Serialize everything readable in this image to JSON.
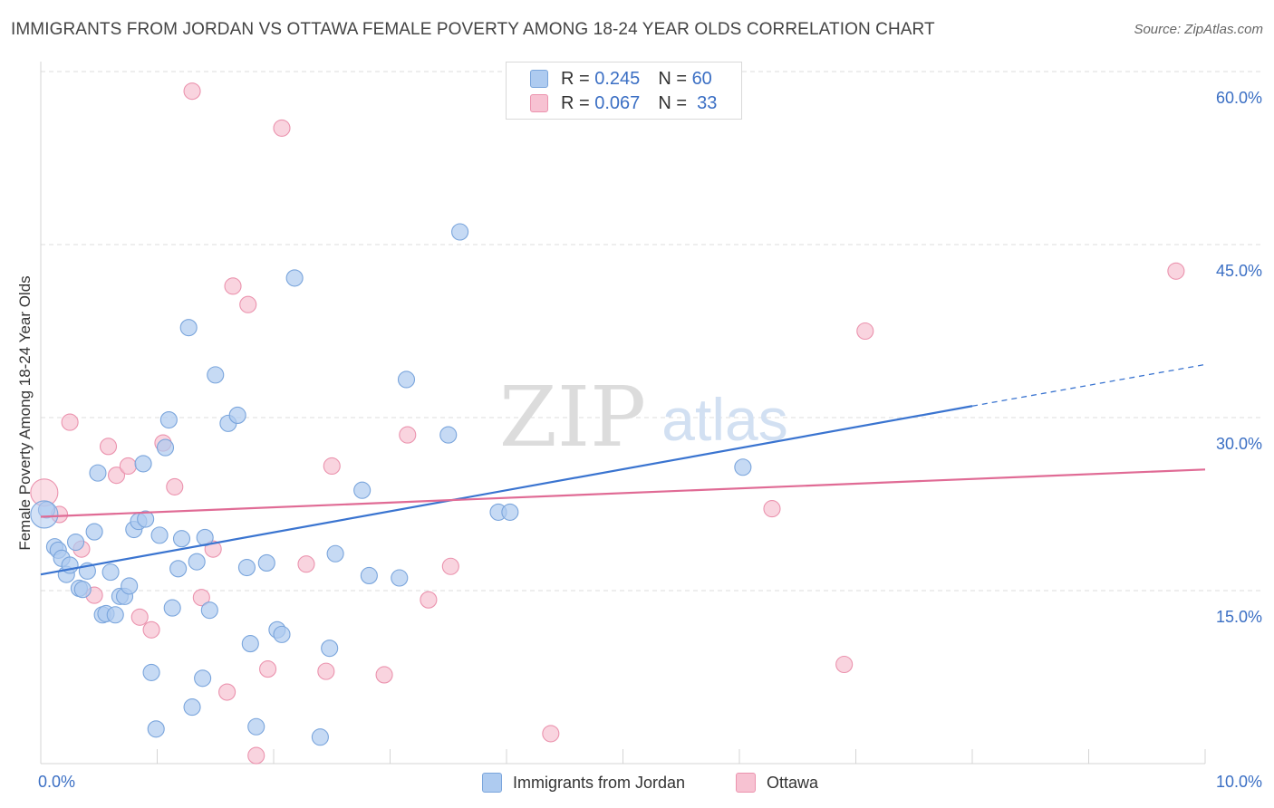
{
  "header": {
    "title": "IMMIGRANTS FROM JORDAN VS OTTAWA FEMALE POVERTY AMONG 18-24 YEAR OLDS CORRELATION CHART",
    "source": "Source: ZipAtlas.com"
  },
  "legend": {
    "rows": [
      {
        "r_label": "R =",
        "r_value": "0.245",
        "n_label": "N =",
        "n_value": "60"
      },
      {
        "r_label": "R =",
        "r_value": "0.067",
        "n_label": "N =",
        "n_value": "33"
      }
    ]
  },
  "watermark": {
    "zip": "ZIP",
    "atlas": "atlas"
  },
  "colors": {
    "blue_fill": "#aecbf0",
    "blue_stroke": "#7aa5dc",
    "blue_line": "#3a74d0",
    "pink_fill": "#f7c2d2",
    "pink_stroke": "#eb93ae",
    "pink_line": "#e06b95",
    "grid": "#dcdcdc",
    "tick_label": "#3b6fc4"
  },
  "chart_data": {
    "type": "scatter",
    "xlabel": "",
    "ylabel": "Female Poverty Among 18-24 Year Olds",
    "xlim": [
      0,
      10
    ],
    "ylim": [
      0,
      60
    ],
    "x_tick_labels": [
      "0.0%",
      "10.0%"
    ],
    "y_tick_labels": [
      "15.0%",
      "30.0%",
      "45.0%",
      "60.0%"
    ],
    "y_ticks": [
      15,
      30,
      45,
      60
    ],
    "grid": true,
    "legend_position": "top-center",
    "series": [
      {
        "name": "Immigrants from Jordan",
        "color": "#aecbf0",
        "points": [
          [
            0.05,
            22.0
          ],
          [
            0.12,
            18.8
          ],
          [
            0.15,
            18.5
          ],
          [
            0.18,
            17.8
          ],
          [
            0.22,
            16.4
          ],
          [
            0.25,
            17.2
          ],
          [
            0.3,
            19.2
          ],
          [
            0.33,
            15.2
          ],
          [
            0.36,
            15.1
          ],
          [
            0.4,
            16.7
          ],
          [
            0.46,
            20.1
          ],
          [
            0.49,
            25.2
          ],
          [
            0.53,
            12.9
          ],
          [
            0.56,
            13.0
          ],
          [
            0.6,
            16.6
          ],
          [
            0.64,
            12.9
          ],
          [
            0.68,
            14.5
          ],
          [
            0.72,
            14.5
          ],
          [
            0.76,
            15.4
          ],
          [
            0.8,
            20.3
          ],
          [
            0.84,
            21.0
          ],
          [
            0.88,
            26.0
          ],
          [
            0.9,
            21.2
          ],
          [
            0.95,
            7.9
          ],
          [
            0.99,
            3.0
          ],
          [
            1.02,
            19.8
          ],
          [
            1.07,
            27.4
          ],
          [
            1.1,
            29.8
          ],
          [
            1.13,
            13.5
          ],
          [
            1.18,
            16.9
          ],
          [
            1.21,
            19.5
          ],
          [
            1.27,
            37.8
          ],
          [
            1.3,
            4.9
          ],
          [
            1.34,
            17.5
          ],
          [
            1.39,
            7.4
          ],
          [
            1.41,
            19.6
          ],
          [
            1.45,
            13.3
          ],
          [
            1.5,
            33.7
          ],
          [
            1.61,
            29.5
          ],
          [
            1.69,
            30.2
          ],
          [
            1.77,
            17.0
          ],
          [
            1.8,
            10.4
          ],
          [
            1.85,
            3.2
          ],
          [
            1.94,
            17.4
          ],
          [
            2.03,
            11.6
          ],
          [
            2.07,
            11.2
          ],
          [
            2.18,
            42.1
          ],
          [
            2.4,
            2.3
          ],
          [
            2.48,
            10.0
          ],
          [
            2.53,
            18.2
          ],
          [
            2.76,
            23.7
          ],
          [
            2.82,
            16.3
          ],
          [
            3.08,
            16.1
          ],
          [
            3.14,
            33.3
          ],
          [
            3.5,
            28.5
          ],
          [
            3.6,
            46.1
          ],
          [
            3.93,
            21.8
          ],
          [
            4.03,
            21.8
          ],
          [
            6.03,
            25.7
          ],
          [
            0.03,
            21.6
          ]
        ]
      },
      {
        "name": "Ottawa",
        "color": "#f7c2d2",
        "points": [
          [
            0.03,
            23.5
          ],
          [
            0.16,
            21.6
          ],
          [
            0.25,
            29.6
          ],
          [
            0.35,
            18.6
          ],
          [
            0.46,
            14.6
          ],
          [
            0.58,
            27.5
          ],
          [
            0.65,
            25.0
          ],
          [
            0.75,
            25.8
          ],
          [
            0.85,
            12.7
          ],
          [
            0.95,
            11.6
          ],
          [
            1.05,
            27.8
          ],
          [
            1.15,
            24.0
          ],
          [
            1.3,
            58.3
          ],
          [
            1.38,
            14.4
          ],
          [
            1.48,
            18.6
          ],
          [
            1.6,
            6.2
          ],
          [
            1.65,
            41.4
          ],
          [
            1.78,
            39.8
          ],
          [
            1.85,
            0.7
          ],
          [
            1.95,
            8.2
          ],
          [
            2.07,
            55.1
          ],
          [
            2.28,
            17.3
          ],
          [
            2.45,
            8.0
          ],
          [
            2.5,
            25.8
          ],
          [
            2.95,
            7.7
          ],
          [
            3.15,
            28.5
          ],
          [
            3.33,
            14.2
          ],
          [
            3.52,
            17.1
          ],
          [
            4.38,
            2.6
          ],
          [
            6.28,
            22.1
          ],
          [
            6.9,
            8.6
          ],
          [
            7.08,
            37.5
          ],
          [
            9.75,
            42.7
          ]
        ]
      }
    ],
    "trendlines": [
      {
        "series": "Immigrants from Jordan",
        "x0": 0,
        "y0": 16.4,
        "x1": 8.0,
        "y1": 31.0,
        "dash_to_x": 10.0,
        "dash_to_y": 34.6
      },
      {
        "series": "Ottawa",
        "x0": 0,
        "y0": 21.4,
        "x1": 10.0,
        "y1": 25.5
      }
    ]
  },
  "bottom_legend": {
    "items": [
      {
        "label": "Immigrants from Jordan"
      },
      {
        "label": "Ottawa"
      }
    ]
  }
}
